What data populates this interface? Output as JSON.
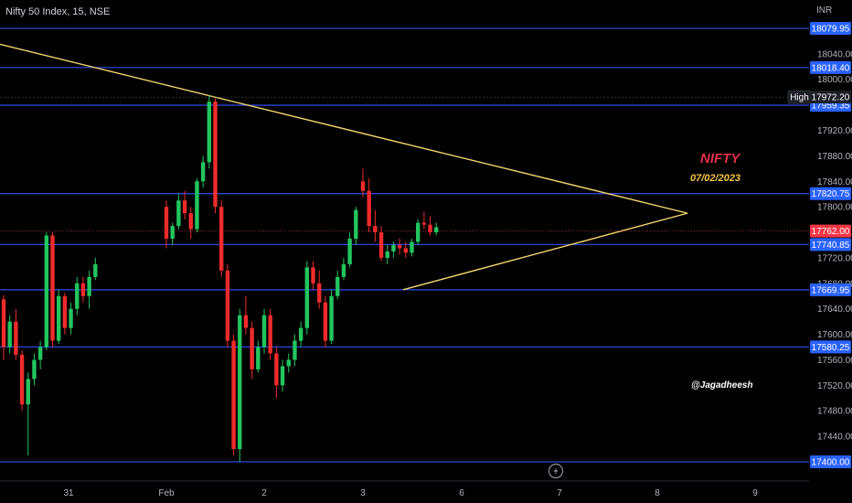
{
  "header": {
    "symbol_label": "Nifty 50 Index, 15, NSE",
    "currency": "INR"
  },
  "annotations": {
    "title": "NIFTY",
    "date": "07/02/2023",
    "handle": "@Jagadheesh"
  },
  "colors": {
    "up": "#22c55e",
    "down": "#ef2b2b",
    "level_line": "#2a46d8",
    "level_badge": "#2962ff",
    "trendline": "#f5d76e",
    "price_badge": "#f23645"
  },
  "chart_data": {
    "type": "candlestick",
    "ylim": [
      17380,
      18100
    ],
    "y_ticks": [
      "18040.00",
      "18000.00",
      "17920.00",
      "17880.00",
      "17840.00",
      "17800.00",
      "17720.00",
      "17680.00",
      "17640.00",
      "17600.00",
      "17560.00",
      "17520.00",
      "17480.00",
      "17440.00"
    ],
    "x_ticks": [
      "31",
      "Feb",
      "2",
      "3",
      "6",
      "7",
      "8",
      "9"
    ],
    "levels": [
      "18079.95",
      "18018.40",
      "17959.35",
      "17820.75",
      "17740.85",
      "17669.95",
      "17580.25",
      "17400.00"
    ],
    "high_label": "High",
    "high_value": "17972.20",
    "last_price": "17762.00",
    "trendlines": [
      {
        "from": [
          "30 Jan",
          18055
        ],
        "to": [
          "8 Feb",
          17790
        ]
      },
      {
        "from": [
          "3 Feb",
          17670
        ],
        "to": [
          "8 Feb",
          17790
        ]
      }
    ],
    "candles": [
      [
        17655,
        17662,
        17560,
        17580
      ],
      [
        17580,
        17630,
        17570,
        17620
      ],
      [
        17620,
        17640,
        17560,
        17568
      ],
      [
        17568,
        17575,
        17480,
        17490
      ],
      [
        17490,
        17540,
        17410,
        17530
      ],
      [
        17530,
        17570,
        17520,
        17560
      ],
      [
        17560,
        17590,
        17545,
        17580
      ],
      [
        17580,
        17760,
        17575,
        17755
      ],
      [
        17755,
        17760,
        17580,
        17590
      ],
      [
        17590,
        17670,
        17585,
        17660
      ],
      [
        17660,
        17665,
        17600,
        17610
      ],
      [
        17610,
        17650,
        17600,
        17640
      ],
      [
        17640,
        17690,
        17630,
        17680
      ],
      [
        17680,
        17690,
        17650,
        17660
      ],
      [
        17660,
        17700,
        17640,
        17690
      ],
      [
        17690,
        17720,
        17685,
        17710
      ],
      [
        17800,
        17810,
        17735,
        17750
      ],
      [
        17750,
        17775,
        17740,
        17770
      ],
      [
        17770,
        17820,
        17765,
        17810
      ],
      [
        17810,
        17825,
        17780,
        17790
      ],
      [
        17790,
        17800,
        17750,
        17765
      ],
      [
        17765,
        17845,
        17760,
        17840
      ],
      [
        17840,
        17880,
        17830,
        17870
      ],
      [
        17870,
        17975,
        17860,
        17965
      ],
      [
        17965,
        17970,
        17790,
        17800
      ],
      [
        17800,
        17810,
        17690,
        17700
      ],
      [
        17700,
        17710,
        17580,
        17590
      ],
      [
        17590,
        17600,
        17410,
        17420
      ],
      [
        17420,
        17640,
        17400,
        17630
      ],
      [
        17630,
        17660,
        17600,
        17610
      ],
      [
        17610,
        17620,
        17530,
        17545
      ],
      [
        17545,
        17590,
        17540,
        17580
      ],
      [
        17580,
        17610,
        17570,
        17600
      ],
      [
        17600,
        17640,
        17590,
        17630
      ],
      [
        17630,
        17640,
        17560,
        17570
      ],
      [
        17570,
        17580,
        17500,
        17520
      ],
      [
        17520,
        17560,
        17510,
        17550
      ],
      [
        17550,
        17570,
        17540,
        17560
      ],
      [
        17560,
        17600,
        17550,
        17590
      ],
      [
        17590,
        17620,
        17580,
        17610
      ],
      [
        17610,
        17715,
        17600,
        17705
      ],
      [
        17705,
        17715,
        17670,
        17680
      ],
      [
        17680,
        17700,
        17640,
        17650
      ],
      [
        17650,
        17660,
        17580,
        17590
      ],
      [
        17590,
        17670,
        17585,
        17660
      ],
      [
        17660,
        17700,
        17655,
        17690
      ],
      [
        17690,
        17720,
        17685,
        17710
      ],
      [
        17710,
        17760,
        17705,
        17750
      ],
      [
        17750,
        17800,
        17740,
        17795
      ],
      [
        17840,
        17860,
        17815,
        17825
      ],
      [
        17825,
        17845,
        17760,
        17770
      ],
      [
        17770,
        17795,
        17745,
        17760
      ],
      [
        17760,
        17770,
        17715,
        17720
      ],
      [
        17720,
        17740,
        17710,
        17730
      ],
      [
        17730,
        17745,
        17720,
        17740
      ],
      [
        17740,
        17750,
        17725,
        17735
      ],
      [
        17735,
        17745,
        17720,
        17728
      ],
      [
        17728,
        17750,
        17722,
        17745
      ],
      [
        17745,
        17780,
        17740,
        17775
      ],
      [
        17775,
        17792,
        17765,
        17772
      ],
      [
        17772,
        17785,
        17755,
        17760
      ],
      [
        17760,
        17775,
        17755,
        17768
      ]
    ]
  }
}
